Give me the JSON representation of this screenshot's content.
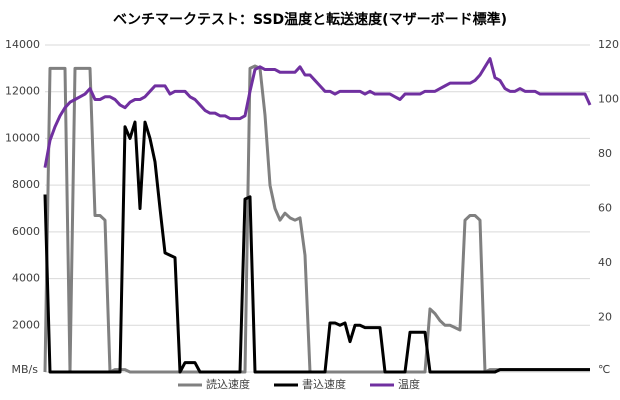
{
  "chart_data": {
    "type": "line",
    "title": "ベンチマークテスト：SSD温度と転送速度(マザーボード標準)",
    "y_label": "MB/s",
    "y2_label": "℃",
    "ylim": [
      0,
      14000
    ],
    "yticks": [
      0,
      2000,
      4000,
      6000,
      8000,
      10000,
      12000,
      14000
    ],
    "y2lim": [
      0,
      120
    ],
    "y2ticks": [
      0,
      20,
      40,
      60,
      80,
      100,
      120
    ],
    "grid": true,
    "legend": "bottom",
    "series": [
      {
        "name": "読込速度",
        "color": "#808080",
        "values": [
          0,
          13000,
          13000,
          13000,
          13000,
          0,
          13000,
          13000,
          13000,
          13000,
          6700,
          6700,
          6500,
          0,
          100,
          100,
          100,
          0,
          0,
          0,
          0,
          0,
          0,
          0,
          0,
          0,
          0,
          0,
          0,
          0,
          0,
          0,
          0,
          0,
          0,
          0,
          0,
          0,
          0,
          0,
          0,
          13000,
          13100,
          13000,
          11000,
          8000,
          7000,
          6500,
          6800,
          6600,
          6500,
          6600,
          5000,
          0,
          0,
          0,
          0,
          0,
          0,
          0,
          0,
          0,
          0,
          0,
          0,
          0,
          0,
          0,
          0,
          0,
          0,
          0,
          0,
          0,
          0,
          0,
          0,
          2700,
          2500,
          2200,
          2000,
          2000,
          1900,
          1800,
          6500,
          6700,
          6700,
          6500,
          0,
          100,
          100,
          100,
          100,
          100,
          100,
          100,
          100,
          100,
          100,
          100,
          100,
          100,
          100,
          100,
          100,
          100,
          100,
          100,
          100,
          100
        ]
      },
      {
        "name": "書込速度",
        "color": "#000000",
        "values": [
          7600,
          0,
          0,
          0,
          0,
          0,
          0,
          0,
          0,
          0,
          0,
          0,
          0,
          0,
          0,
          0,
          10500,
          10000,
          10700,
          7000,
          10700,
          10000,
          9000,
          7000,
          5100,
          5000,
          4900,
          0,
          400,
          400,
          400,
          0,
          0,
          0,
          0,
          0,
          0,
          0,
          0,
          0,
          7400,
          7500,
          0,
          0,
          0,
          0,
          0,
          0,
          0,
          0,
          0,
          0,
          0,
          0,
          0,
          0,
          0,
          2100,
          2100,
          2000,
          2100,
          1300,
          2000,
          2000,
          1900,
          1900,
          1900,
          1900,
          0,
          0,
          0,
          0,
          0,
          1700,
          1700,
          1700,
          1700,
          0,
          0,
          0,
          0,
          0,
          0,
          0,
          0,
          0,
          0,
          0,
          0,
          0,
          0,
          100,
          100,
          100,
          100,
          100,
          100,
          100,
          100,
          100,
          100,
          100,
          100,
          100,
          100,
          100,
          100,
          100,
          100,
          100
        ]
      },
      {
        "name": "温度",
        "color": "#7030a0",
        "axis": "y2",
        "values": [
          75,
          85,
          90,
          94,
          97,
          99,
          100,
          101,
          102,
          104,
          100,
          100,
          101,
          101,
          100,
          98,
          97,
          99,
          100,
          100,
          101,
          103,
          105,
          105,
          105,
          102,
          103,
          103,
          103,
          101,
          100,
          98,
          96,
          95,
          95,
          94,
          94,
          93,
          93,
          93,
          94,
          103,
          111,
          112,
          111,
          111,
          111,
          110,
          110,
          110,
          110,
          112,
          109,
          109,
          107,
          105,
          103,
          103,
          102,
          103,
          103,
          103,
          103,
          103,
          102,
          103,
          102,
          102,
          102,
          102,
          101,
          100,
          102,
          102,
          102,
          102,
          103,
          103,
          103,
          104,
          105,
          106,
          106,
          106,
          106,
          106,
          107,
          109,
          112,
          115,
          108,
          107,
          104,
          103,
          103,
          104,
          103,
          103,
          103,
          102,
          102,
          102,
          102,
          102,
          102,
          102,
          102,
          102,
          102,
          98
        ]
      }
    ]
  }
}
